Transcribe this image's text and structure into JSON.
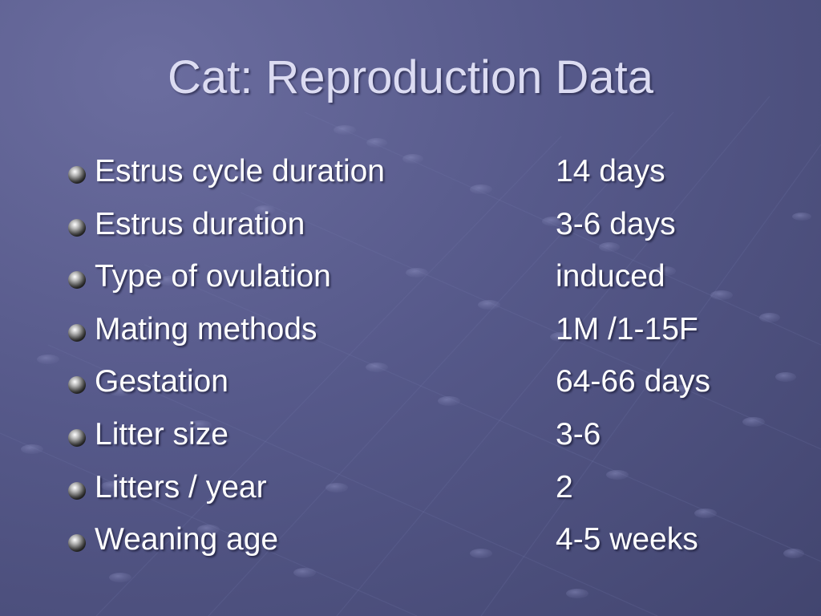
{
  "slide": {
    "title": "Cat: Reproduction Data",
    "rows": [
      {
        "label": "Estrus cycle duration",
        "value": "14 days"
      },
      {
        "label": "Estrus duration",
        "value": "3-6 days"
      },
      {
        "label": "Type of ovulation",
        "value": "induced"
      },
      {
        "label": "Mating methods",
        "value": "1M /1-15F"
      },
      {
        "label": "Gestation",
        "value": "64-66 days"
      },
      {
        "label": "Litter size",
        "value": "3-6"
      },
      {
        "label": "Litters / year",
        "value": "2"
      },
      {
        "label": "Weaning age",
        "value": "4-5 weeks"
      }
    ],
    "bullet_icon": "sphere-bullet-icon"
  },
  "colors": {
    "background": "#56598a",
    "title": "#dcdcf2",
    "text": "#ffffff"
  }
}
